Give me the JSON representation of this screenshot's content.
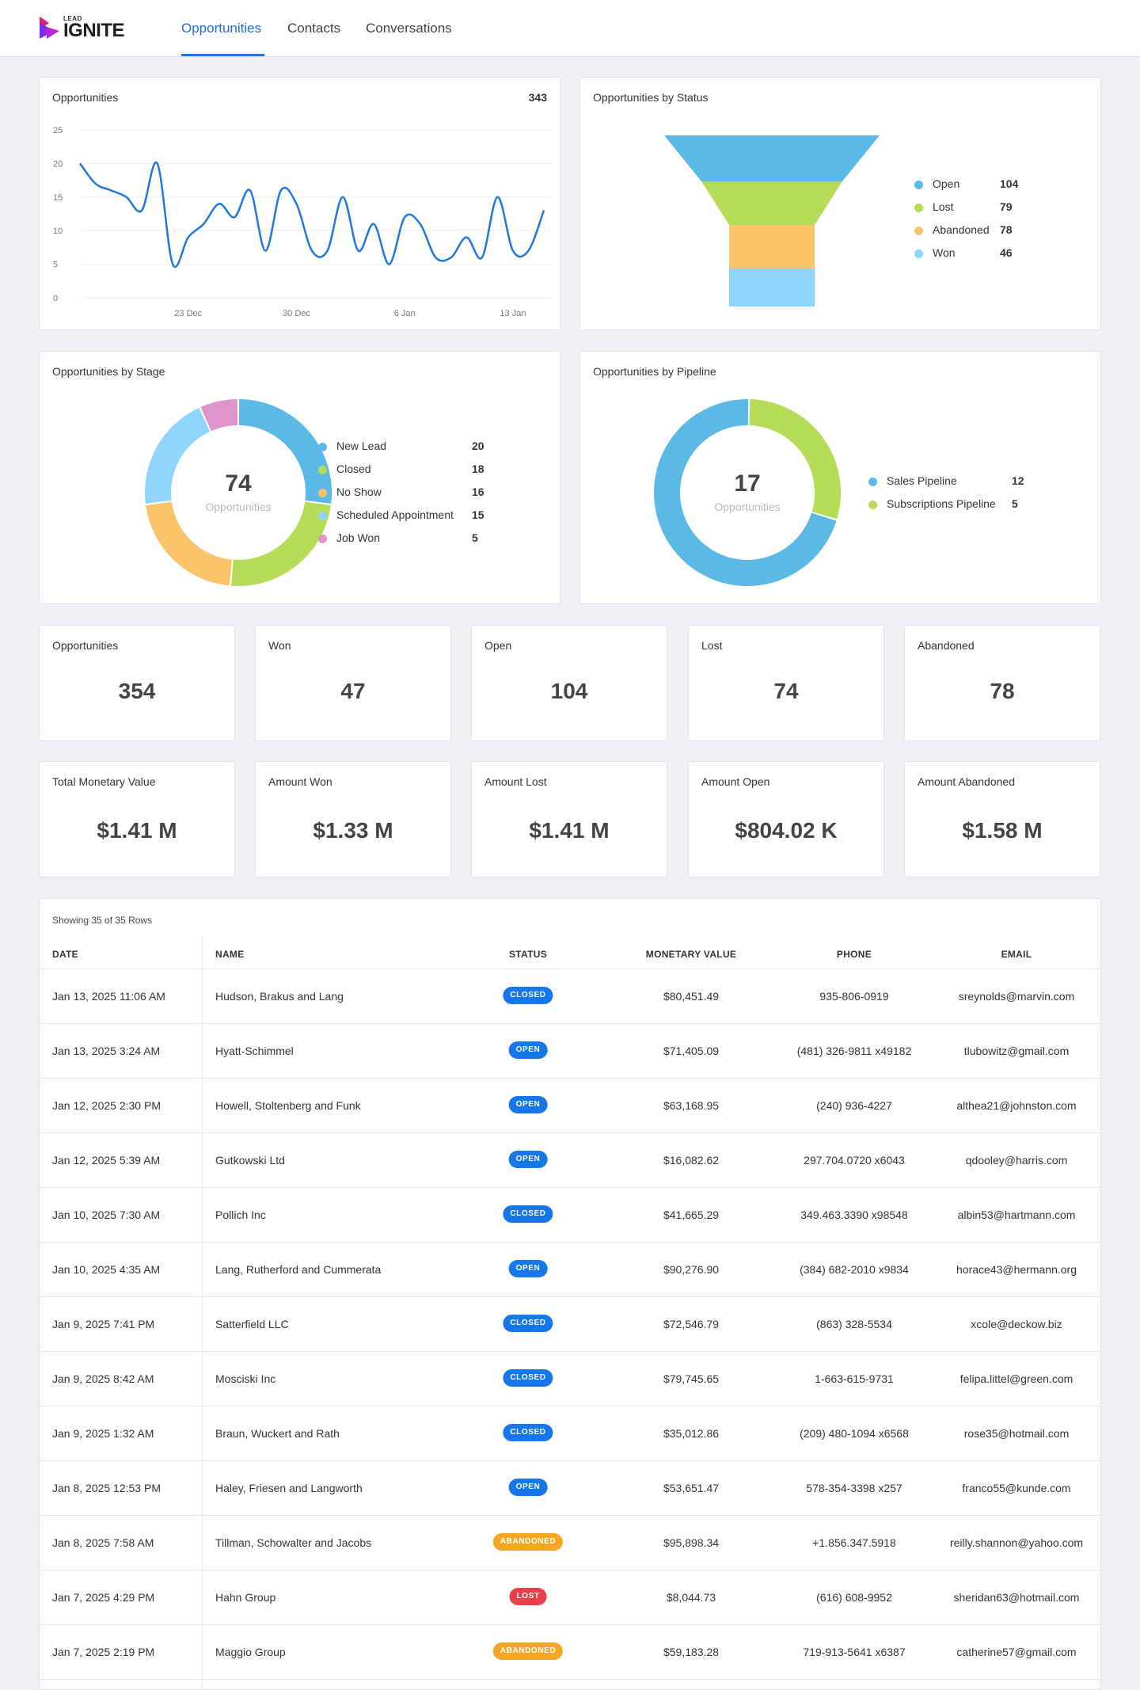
{
  "brand": {
    "small": "LEAD",
    "big": "IGNITE"
  },
  "nav": {
    "tabs": [
      "Opportunities",
      "Contacts",
      "Conversations"
    ],
    "active": "Opportunities"
  },
  "opportunities_chart": {
    "title": "Opportunities",
    "count": "343",
    "chart_data": {
      "type": "line",
      "title": "Opportunities",
      "xlabel": "",
      "ylabel": "",
      "ylim": [
        0,
        25
      ],
      "yticks": [
        "0",
        "5",
        "10",
        "15",
        "20",
        "25"
      ],
      "xticks": [
        "23 Dec",
        "30 Dec",
        "6 Jan",
        "13 Jan"
      ],
      "grid": true,
      "x": [
        "Dec 16",
        "Dec 17",
        "Dec 18",
        "Dec 19",
        "Dec 20",
        "Dec 21",
        "Dec 22",
        "Dec 23",
        "Dec 24",
        "Dec 25",
        "Dec 26",
        "Dec 27",
        "Dec 28",
        "Dec 29",
        "Dec 30",
        "Dec 31",
        "Jan 1",
        "Jan 2",
        "Jan 3",
        "Jan 4",
        "Jan 5",
        "Jan 6",
        "Jan 7",
        "Jan 8",
        "Jan 9",
        "Jan 10",
        "Jan 11",
        "Jan 12",
        "Jan 13",
        "Jan 14",
        "Jan 15"
      ],
      "series": [
        {
          "values": [
            20,
            17,
            16,
            15,
            13,
            20,
            5,
            9,
            11,
            14,
            12,
            16,
            7,
            16,
            14,
            7,
            7,
            15,
            7,
            11,
            5,
            12,
            11,
            6,
            6,
            9,
            6,
            15,
            7,
            7,
            13
          ]
        }
      ]
    }
  },
  "status_funnel": {
    "title": "Opportunities by Status",
    "legend": [
      {
        "label": "Open",
        "value": "104",
        "color": "#5bb9e6"
      },
      {
        "label": "Lost",
        "value": "79",
        "color": "#b5dc57"
      },
      {
        "label": "Abandoned",
        "value": "78",
        "color": "#f9c36a"
      },
      {
        "label": "Won",
        "value": "46",
        "color": "#8fd5fb"
      }
    ]
  },
  "stage_donut": {
    "title": "Opportunities by Stage",
    "center_value": "74",
    "center_label": "Opportunities",
    "legend": [
      {
        "label": "New Lead",
        "value": "20",
        "color": "#5bb9e6"
      },
      {
        "label": "Closed",
        "value": "18",
        "color": "#b5dc57"
      },
      {
        "label": "No Show",
        "value": "16",
        "color": "#f9c36a"
      },
      {
        "label": "Scheduled Appointment",
        "value": "15",
        "color": "#8fd5fb"
      },
      {
        "label": "Job Won",
        "value": "5",
        "color": "#dd95cb"
      }
    ]
  },
  "pipeline_donut": {
    "title": "Opportunities by Pipeline",
    "center_value": "17",
    "center_label": "Opportunities",
    "legend": [
      {
        "label": "Sales Pipeline",
        "value": "12",
        "color": "#5bb9e6"
      },
      {
        "label": "Subscriptions Pipeline",
        "value": "5",
        "color": "#b5dc57"
      }
    ]
  },
  "stats": [
    {
      "label": "Opportunities",
      "value": "354"
    },
    {
      "label": "Won",
      "value": "47"
    },
    {
      "label": "Open",
      "value": "104"
    },
    {
      "label": "Lost",
      "value": "74"
    },
    {
      "label": "Abandoned",
      "value": "78"
    }
  ],
  "amounts": [
    {
      "label": "Total Monetary Value",
      "value": "$1.41 M"
    },
    {
      "label": "Amount Won",
      "value": "$1.33 M"
    },
    {
      "label": "Amount Lost",
      "value": "$1.41 M"
    },
    {
      "label": "Amount Open",
      "value": "$804.02 K"
    },
    {
      "label": "Amount Abandoned",
      "value": "$1.58 M"
    }
  ],
  "table": {
    "rows_info": "Showing 35 of 35 Rows",
    "headers": [
      "DATE",
      "NAME",
      "STATUS",
      "MONETARY VALUE",
      "PHONE",
      "EMAIL"
    ],
    "status_colors": {
      "CLOSED": "#1677e8",
      "OPEN": "#1677e8",
      "ABANDONED": "#f5a623",
      "LOST": "#e8404a"
    },
    "rows": [
      {
        "date": "Jan 13, 2025 11:06 AM",
        "name": "Hudson, Brakus and Lang",
        "status": "CLOSED",
        "value": "$80,451.49",
        "phone": "935-806-0919",
        "email": "sreynolds@marvin.com"
      },
      {
        "date": "Jan 13, 2025 3:24 AM",
        "name": "Hyatt-Schimmel",
        "status": "OPEN",
        "value": "$71,405.09",
        "phone": "(481) 326-9811 x49182",
        "email": "tlubowitz@gmail.com"
      },
      {
        "date": "Jan 12, 2025 2:30 PM",
        "name": "Howell, Stoltenberg and Funk",
        "status": "OPEN",
        "value": "$63,168.95",
        "phone": "(240) 936-4227",
        "email": "althea21@johnston.com"
      },
      {
        "date": "Jan 12, 2025 5:39 AM",
        "name": "Gutkowski Ltd",
        "status": "OPEN",
        "value": "$16,082.62",
        "phone": "297.704.0720 x6043",
        "email": "qdooley@harris.com"
      },
      {
        "date": "Jan 10, 2025 7:30 AM",
        "name": "Pollich Inc",
        "status": "CLOSED",
        "value": "$41,665.29",
        "phone": "349.463.3390 x98548",
        "email": "albin53@hartmann.com"
      },
      {
        "date": "Jan 10, 2025 4:35 AM",
        "name": "Lang, Rutherford and Cummerata",
        "status": "OPEN",
        "value": "$90,276.90",
        "phone": "(384) 682-2010 x9834",
        "email": "horace43@hermann.org"
      },
      {
        "date": "Jan 9, 2025 7:41 PM",
        "name": "Satterfield LLC",
        "status": "CLOSED",
        "value": "$72,546.79",
        "phone": "(863) 328-5534",
        "email": "xcole@deckow.biz"
      },
      {
        "date": "Jan 9, 2025 8:42 AM",
        "name": "Mosciski Inc",
        "status": "CLOSED",
        "value": "$79,745.65",
        "phone": "1-663-615-9731",
        "email": "felipa.littel@green.com"
      },
      {
        "date": "Jan 9, 2025 1:32 AM",
        "name": "Braun, Wuckert and Rath",
        "status": "CLOSED",
        "value": "$35,012.86",
        "phone": "(209) 480-1094 x6568",
        "email": "rose35@hotmail.com"
      },
      {
        "date": "Jan 8, 2025 12:53 PM",
        "name": "Haley, Friesen and Langworth",
        "status": "OPEN",
        "value": "$53,651.47",
        "phone": "578-354-3398 x257",
        "email": "franco55@kunde.com"
      },
      {
        "date": "Jan 8, 2025 7:58 AM",
        "name": "Tillman, Schowalter and Jacobs",
        "status": "ABANDONED",
        "value": "$95,898.34",
        "phone": "+1.856.347.5918",
        "email": "reilly.shannon@yahoo.com"
      },
      {
        "date": "Jan 7, 2025 4:29 PM",
        "name": "Hahn Group",
        "status": "LOST",
        "value": "$8,044.73",
        "phone": "(616) 608-9952",
        "email": "sheridan63@hotmail.com"
      },
      {
        "date": "Jan 7, 2025 2:19 PM",
        "name": "Maggio Group",
        "status": "ABANDONED",
        "value": "$59,183.28",
        "phone": "719-913-5641 x6387",
        "email": "catherine57@gmail.com"
      }
    ]
  }
}
